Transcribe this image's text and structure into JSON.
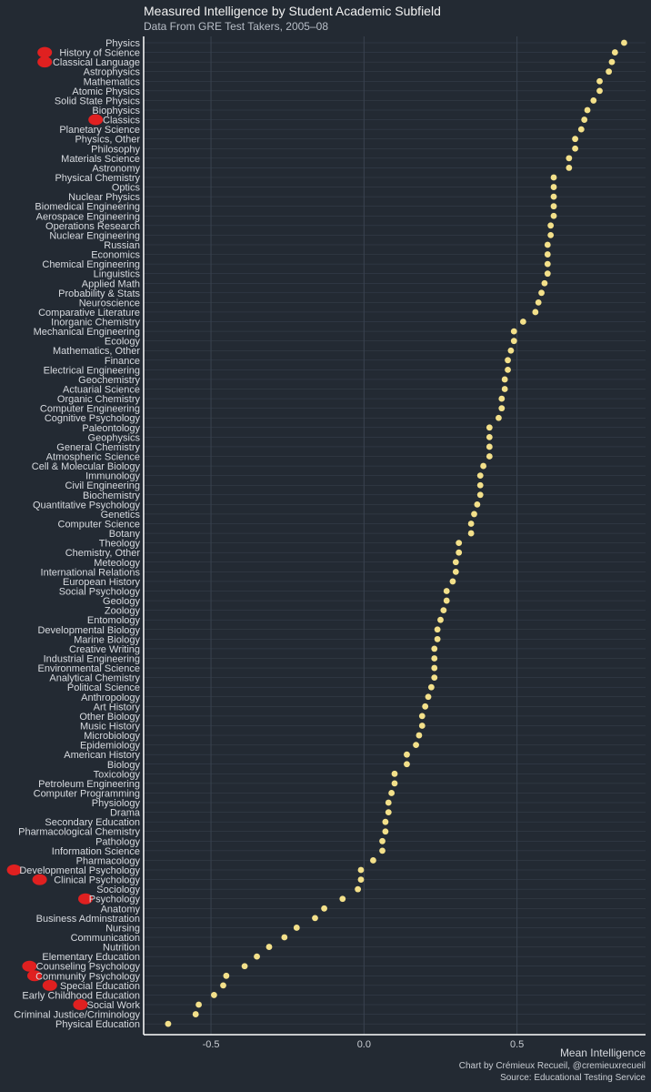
{
  "colors": {
    "background": "#232a33",
    "point": "#f3e08a",
    "axis": "#ffffff",
    "grid": "#3a4350",
    "marker": "#e02020"
  },
  "chart_data": {
    "type": "scatter",
    "title": "Measured Intelligence by Student Academic Subfield",
    "subtitle": "Data From GRE Test Takers, 2005–08",
    "xlabel": "Mean Intelligence",
    "ylabel": "",
    "xlim": [
      -0.72,
      0.92
    ],
    "xticks": [
      -0.5,
      0.0,
      0.5
    ],
    "xtick_labels": [
      "-0.5",
      "0.0",
      "0.5"
    ],
    "grid": true,
    "legend": "none",
    "categories": [
      "Physics",
      "History of Science",
      "Classical Language",
      "Astrophysics",
      "Mathematics",
      "Atomic Physics",
      "Solid State Physics",
      "Biophysics",
      "Classics",
      "Planetary Science",
      "Physics, Other",
      "Philosophy",
      "Materials Science",
      "Astronomy",
      "Physical Chemistry",
      "Optics",
      "Nuclear Physics",
      "Biomedical Engineering",
      "Aerospace Engineering",
      "Operations Research",
      "Nuclear Engineering",
      "Russian",
      "Economics",
      "Chemical Engineering",
      "Linguistics",
      "Applied Math",
      "Probability & Stats",
      "Neuroscience",
      "Comparative Literature",
      "Inorganic Chemistry",
      "Mechanical Engineering",
      "Ecology",
      "Mathematics, Other",
      "Finance",
      "Electrical Engineering",
      "Geochemistry",
      "Actuarial Science",
      "Organic Chemistry",
      "Computer Engineering",
      "Cognitive Psychology",
      "Paleontology",
      "Geophysics",
      "General Chemistry",
      "Atmospheric Science",
      "Cell & Molecular Biology",
      "Immunology",
      "Civil Engineering",
      "Biochemistry",
      "Quantitative Psychology",
      "Genetics",
      "Computer Science",
      "Botany",
      "Theology",
      "Chemistry, Other",
      "Meteology",
      "International Relations",
      "European History",
      "Social Psychology",
      "Geology",
      "Zoology",
      "Entomology",
      "Developmental Biology",
      "Marine Biology",
      "Creative Writing",
      "Industrial Engineering",
      "Environmental Science",
      "Analytical Chemistry",
      "Political Science",
      "Anthropology",
      "Art History",
      "Other Biology",
      "Music History",
      "Microbiology",
      "Epidemiology",
      "American History",
      "Biology",
      "Toxicology",
      "Petroleum Engineering",
      "Computer Programming",
      "Physiology",
      "Drama",
      "Secondary Education",
      "Pharmacological Chemistry",
      "Pathology",
      "Information Science",
      "Pharmacology",
      "Developmental Psychology",
      "Clinical Psychology",
      "Sociology",
      "Psychology",
      "Anatomy",
      "Business Adminstration",
      "Nursing",
      "Communication",
      "Nutrition",
      "Elementary Education",
      "Counseling Psychology",
      "Community Psychology",
      "Special Education",
      "Early Childhood Education",
      "Social Work",
      "Criminal Justice/Criminology",
      "Physical Education"
    ],
    "values": [
      0.85,
      0.82,
      0.81,
      0.8,
      0.77,
      0.77,
      0.75,
      0.73,
      0.72,
      0.71,
      0.69,
      0.69,
      0.67,
      0.67,
      0.62,
      0.62,
      0.62,
      0.62,
      0.62,
      0.61,
      0.61,
      0.6,
      0.6,
      0.6,
      0.6,
      0.59,
      0.58,
      0.57,
      0.56,
      0.52,
      0.49,
      0.49,
      0.48,
      0.47,
      0.47,
      0.46,
      0.46,
      0.45,
      0.45,
      0.44,
      0.41,
      0.41,
      0.41,
      0.41,
      0.39,
      0.38,
      0.38,
      0.38,
      0.37,
      0.36,
      0.35,
      0.35,
      0.31,
      0.31,
      0.3,
      0.3,
      0.29,
      0.27,
      0.27,
      0.26,
      0.25,
      0.24,
      0.24,
      0.23,
      0.23,
      0.23,
      0.23,
      0.22,
      0.21,
      0.2,
      0.19,
      0.19,
      0.18,
      0.17,
      0.14,
      0.14,
      0.1,
      0.1,
      0.09,
      0.08,
      0.08,
      0.07,
      0.07,
      0.06,
      0.06,
      0.03,
      -0.01,
      -0.01,
      -0.02,
      -0.07,
      -0.13,
      -0.16,
      -0.22,
      -0.26,
      -0.31,
      -0.35,
      -0.39,
      -0.45,
      -0.46,
      -0.49,
      -0.54,
      -0.55,
      -0.64
    ]
  },
  "highlighted_labels": [
    "History of Science",
    "Classical Language",
    "Classics",
    "Developmental Psychology",
    "Clinical Psychology",
    "Psychology",
    "Counseling Psychology",
    "Community Psychology",
    "Special Education",
    "Social Work"
  ],
  "footer": {
    "credit": "Chart by Crémieux Recueil, @cremieuxrecueil",
    "source": "Source: Educational Testing Service"
  }
}
